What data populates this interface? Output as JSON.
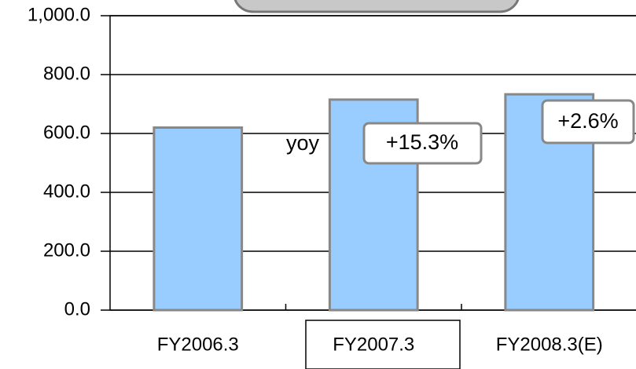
{
  "chart_data": {
    "type": "bar",
    "categories": [
      "FY2006.3",
      "FY2007.3",
      "FY2008.3(E)"
    ],
    "values": [
      620,
      715,
      733
    ],
    "color": "#99ccff",
    "ylim": [
      0,
      1000
    ],
    "yticks": [
      {
        "value": 0,
        "label": "0.0"
      },
      {
        "value": 200,
        "label": "200.0"
      },
      {
        "value": 400,
        "label": "400.0"
      },
      {
        "value": 600,
        "label": "600.0"
      },
      {
        "value": 800,
        "label": "800.0"
      },
      {
        "value": 1000,
        "label": "1,000.0"
      }
    ],
    "grid": true,
    "annotations": [
      "yoy",
      "+15.3%",
      "+2.6%"
    ]
  }
}
